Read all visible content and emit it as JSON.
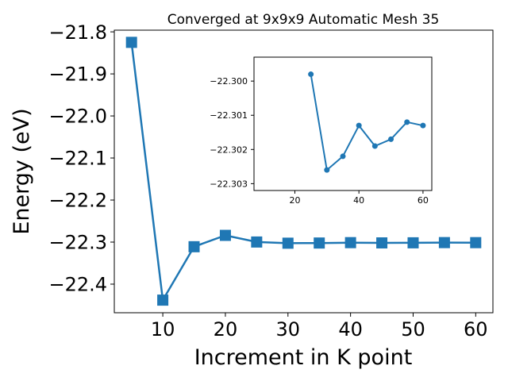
{
  "chart_data": [
    {
      "type": "line",
      "title": "Converged at 9x9x9 Automatic Mesh 35",
      "xlabel": "Increment in K point",
      "ylabel": "Energy (eV)",
      "xlim": [
        2.25,
        62.75
      ],
      "ylim": [
        -22.468,
        -21.796
      ],
      "xticks": [
        10,
        20,
        30,
        40,
        50,
        60
      ],
      "xtick_labels": [
        "10",
        "20",
        "30",
        "40",
        "50",
        "60"
      ],
      "yticks": [
        -21.8,
        -21.9,
        -22.0,
        -22.1,
        -22.2,
        -22.3,
        -22.4
      ],
      "ytick_labels": [
        "−21.8",
        "−21.9",
        "−22.0",
        "−22.1",
        "−22.2",
        "−22.3",
        "−22.4"
      ],
      "grid": false,
      "marker": "square",
      "color": "#1f77b4",
      "series": [
        {
          "x": [
            5,
            10,
            15,
            20,
            25,
            30,
            35,
            40,
            45,
            50,
            55,
            60
          ],
          "y": [
            -21.825,
            -22.438,
            -22.311,
            -22.284,
            -22.2998,
            -22.3026,
            -22.3022,
            -22.3013,
            -22.3019,
            -22.3017,
            -22.3012,
            -22.3013
          ]
        }
      ]
    },
    {
      "type": "line",
      "title": "",
      "xlabel": "",
      "ylabel": "",
      "xlim": [
        7.25,
        62.75
      ],
      "ylim": [
        -22.3032,
        -22.2993
      ],
      "xticks": [
        20,
        40,
        60
      ],
      "xtick_labels": [
        "20",
        "40",
        "60"
      ],
      "yticks": [
        -22.303,
        -22.302,
        -22.301,
        -22.3
      ],
      "ytick_labels": [
        "−22.303",
        "−22.302",
        "−22.301",
        "−22.300"
      ],
      "grid": false,
      "marker": "circle",
      "color": "#1f77b4",
      "series": [
        {
          "x": [
            25,
            30,
            35,
            40,
            45,
            50,
            55,
            60
          ],
          "y": [
            -22.2998,
            -22.3026,
            -22.3022,
            -22.3013,
            -22.3019,
            -22.3017,
            -22.3012,
            -22.3013
          ]
        }
      ]
    }
  ]
}
